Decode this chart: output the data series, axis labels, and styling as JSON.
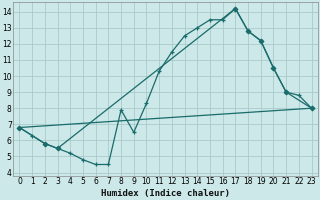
{
  "xlabel": "Humidex (Indice chaleur)",
  "bg_color": "#cce8e8",
  "grid_color": "#aacaca",
  "line_color": "#1a6b6b",
  "xlim": [
    -0.5,
    23.5
  ],
  "ylim": [
    3.8,
    14.6
  ],
  "yticks": [
    4,
    5,
    6,
    7,
    8,
    9,
    10,
    11,
    12,
    13,
    14
  ],
  "xticks": [
    0,
    1,
    2,
    3,
    4,
    5,
    6,
    7,
    8,
    9,
    10,
    11,
    12,
    13,
    14,
    15,
    16,
    17,
    18,
    19,
    20,
    21,
    22,
    23
  ],
  "series": [
    {
      "x": [
        0,
        1,
        2,
        3,
        4,
        5,
        6,
        7,
        8,
        9,
        10,
        11,
        12,
        13,
        14,
        15,
        16,
        17,
        18,
        19,
        20,
        21,
        22,
        23
      ],
      "y": [
        6.8,
        6.3,
        5.8,
        5.5,
        5.2,
        4.8,
        4.5,
        4.5,
        7.9,
        6.5,
        8.3,
        10.3,
        11.5,
        12.5,
        13.0,
        13.5,
        13.5,
        14.2,
        12.8,
        12.2,
        10.5,
        9.0,
        8.8,
        8.0
      ],
      "marker": "+"
    },
    {
      "x": [
        0,
        2,
        3,
        17,
        18,
        19,
        20,
        21,
        23
      ],
      "y": [
        6.8,
        5.8,
        5.5,
        14.2,
        12.8,
        12.2,
        10.5,
        9.0,
        8.0
      ],
      "marker": "D"
    },
    {
      "x": [
        0,
        23
      ],
      "y": [
        6.8,
        8.0
      ],
      "marker": null
    }
  ]
}
